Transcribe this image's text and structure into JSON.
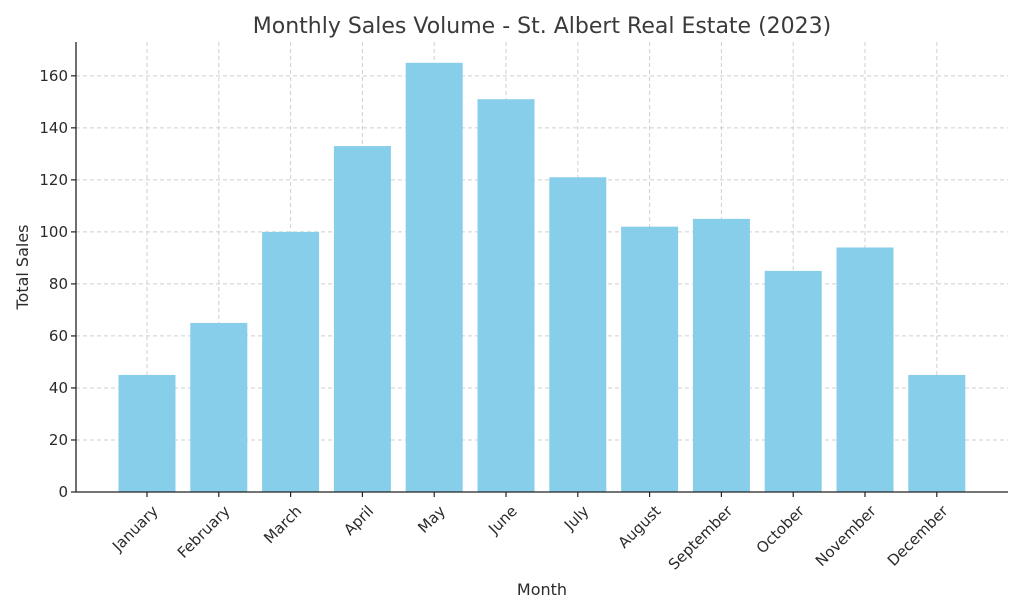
{
  "chart_data": {
    "type": "bar",
    "title": "Monthly Sales Volume - St. Albert Real Estate (2023)",
    "xlabel": "Month",
    "ylabel": "Total Sales",
    "categories": [
      "January",
      "February",
      "March",
      "April",
      "May",
      "June",
      "July",
      "August",
      "September",
      "October",
      "November",
      "December"
    ],
    "values": [
      45,
      65,
      100,
      133,
      165,
      151,
      121,
      102,
      105,
      85,
      94,
      45
    ],
    "ylim": [
      0,
      173
    ],
    "yticks": [
      0,
      20,
      40,
      60,
      80,
      100,
      120,
      140,
      160
    ],
    "grid": true,
    "bar_color": "#87ceeb"
  }
}
